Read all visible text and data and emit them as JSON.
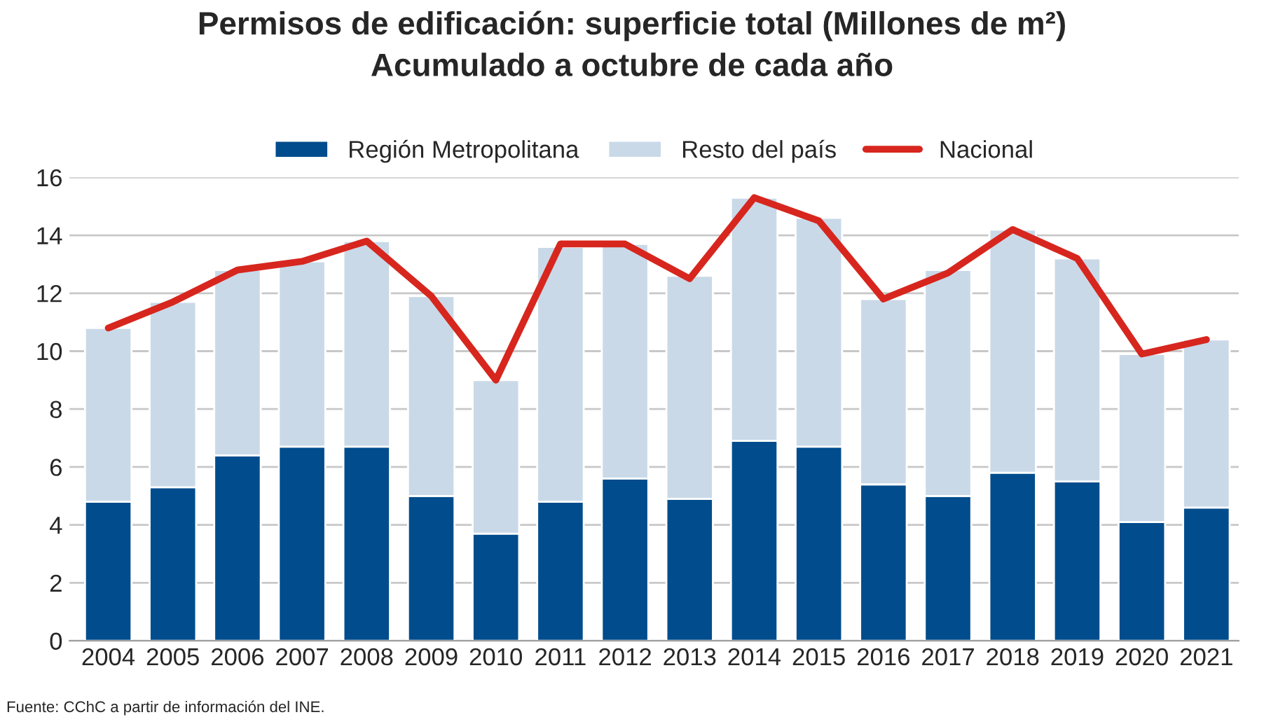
{
  "chart_data": {
    "type": "bar",
    "stacked": true,
    "title": "Permisos de edificación: superficie total (Millones de m²)\nAcumulado a octubre de cada año",
    "categories": [
      "2004",
      "2005",
      "2006",
      "2007",
      "2008",
      "2009",
      "2010",
      "2011",
      "2012",
      "2013",
      "2014",
      "2015",
      "2016",
      "2017",
      "2018",
      "2019",
      "2020",
      "2021"
    ],
    "series": [
      {
        "name": "Región Metropolitana",
        "color": "#004c8c",
        "values": [
          4.8,
          5.3,
          6.4,
          6.7,
          6.7,
          5.0,
          3.7,
          4.8,
          5.6,
          4.9,
          6.9,
          6.7,
          5.4,
          5.0,
          5.8,
          5.5,
          4.1,
          4.6
        ]
      },
      {
        "name": "Resto del país",
        "color": "#c9d9e8",
        "values": [
          6.0,
          6.4,
          6.4,
          6.4,
          7.1,
          6.9,
          5.3,
          8.8,
          8.1,
          7.7,
          8.4,
          7.9,
          6.4,
          7.8,
          8.4,
          7.7,
          5.8,
          5.8
        ]
      },
      {
        "name": "Nacional",
        "type": "line",
        "color": "#d7261e",
        "values": [
          10.8,
          11.7,
          12.8,
          13.1,
          13.8,
          11.9,
          9.0,
          13.7,
          13.7,
          12.5,
          15.3,
          14.5,
          11.8,
          12.7,
          14.2,
          13.2,
          9.9,
          10.4
        ]
      }
    ],
    "ylim": [
      0,
      16
    ],
    "yticks": [
      0,
      2,
      4,
      6,
      8,
      10,
      12,
      14,
      16
    ],
    "grid": "y",
    "legend": "top",
    "annotations": [
      "Fuente: CChC a partir de información del INE."
    ]
  }
}
